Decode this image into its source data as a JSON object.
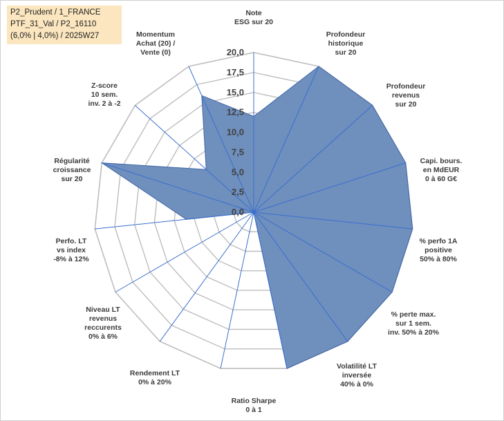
{
  "info_box": {
    "lines": [
      "P2_Prudent / 1_FRANCE",
      "PTF_31_Val / P2_16110",
      "(6,0% | 4,0%) / 2025W27"
    ]
  },
  "colors": {
    "fill": "#6f8fbd",
    "stroke": "#3e64a7",
    "spoke": "#3a6fcf",
    "grid": "#bdbdbd",
    "info_bg": "#fbe6bf"
  },
  "chart_data": {
    "type": "radar",
    "rmin": 0,
    "rmax": 20,
    "ticks": [
      "0,0",
      "2,5",
      "5,0",
      "7,5",
      "10,0",
      "12,5",
      "15,0",
      "17,5",
      "20,0"
    ],
    "axes": [
      {
        "label": [
          "Note",
          "ESG sur 20"
        ],
        "value": 12
      },
      {
        "label": [
          "Profondeur",
          "historique",
          "sur 20"
        ],
        "value": 20
      },
      {
        "label": [
          "Profondeur",
          "revenus",
          "sur 20"
        ],
        "value": 20
      },
      {
        "label": [
          "Capi. bours.",
          "en MdEUR",
          "0 à 60 G€"
        ],
        "value": 20
      },
      {
        "label": [
          "% perfo 1A",
          "positive",
          "50% à 80%"
        ],
        "value": 20
      },
      {
        "label": [
          "% perte max.",
          "sur 1 sem.",
          "inv. 50% à 20%"
        ],
        "value": 20
      },
      {
        "label": [
          "Volatilité LT",
          "inversée",
          "40% à 0%"
        ],
        "value": 20
      },
      {
        "label": [
          "Ratio Sharpe",
          "0 à 1"
        ],
        "value": 20
      },
      {
        "label": [
          "Rendement LT",
          "0% à 20%"
        ],
        "value": 0
      },
      {
        "label": [
          "Niveau LT",
          "revenus",
          "reccurents",
          "0% à 6%"
        ],
        "value": 0
      },
      {
        "label": [
          "Perfo. LT",
          "vs index",
          "-8% à 12%"
        ],
        "value": 0
      },
      {
        "label": [
          "Régularité",
          "croissance",
          "sur 20"
        ],
        "value": 8.5
      },
      {
        "label": [
          "Régularité",
          "croissance",
          "sur 20"
        ],
        "value": 20
      },
      {
        "label": [
          "Z-score",
          "10 sem.",
          "inv. 2 à -2"
        ],
        "value": 8
      },
      {
        "label": [
          "Momentum",
          "Achat (20) /",
          "Vente (0)"
        ],
        "value": 16
      }
    ]
  }
}
